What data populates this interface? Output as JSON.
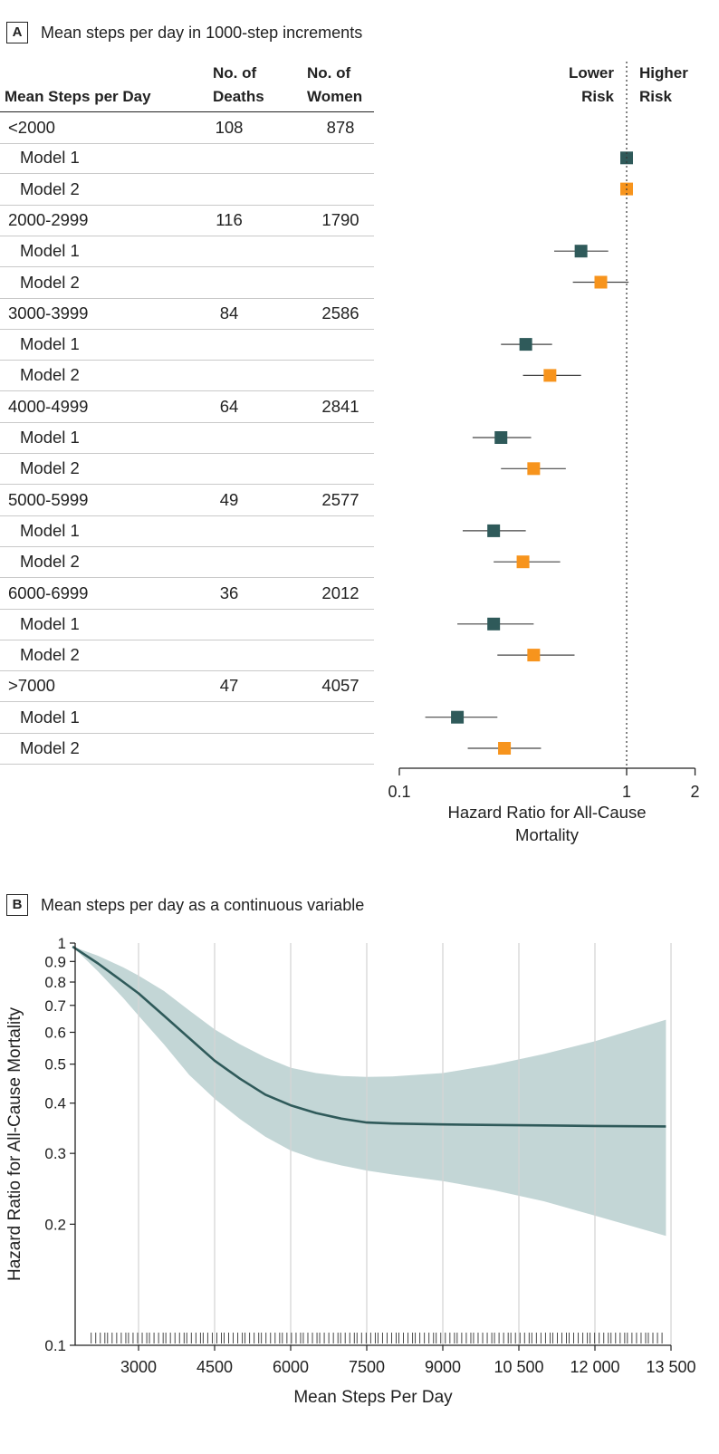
{
  "panelA": {
    "label": "A",
    "title": "Mean steps per day in 1000-step increments",
    "headers": {
      "steps": "Mean Steps per Day",
      "deaths": [
        "No. of",
        "Deaths"
      ],
      "women": [
        "No. of",
        "Women"
      ],
      "lower": [
        "Lower",
        "Risk"
      ],
      "higher": [
        "Higher",
        "Risk"
      ]
    }
  },
  "panelB": {
    "label": "B",
    "title": "Mean steps per day as a continuous variable"
  },
  "colors": {
    "model1": "#2f5a5a",
    "model2": "#f7941d",
    "band": "#c3d6d6",
    "curve": "#2f5a5a",
    "grid": "#d5d5d5"
  },
  "chart_data": [
    {
      "type": "forest",
      "xscale": "log",
      "xlim": [
        0.1,
        2
      ],
      "xticks": [
        0.1,
        1,
        2
      ],
      "xlabel": "Hazard Ratio for All-Cause Mortality",
      "reference_line": 1,
      "series": [
        {
          "name": "Model 1"
        },
        {
          "name": "Model 2"
        }
      ],
      "groups": [
        {
          "label": "<2000",
          "deaths": "108",
          "women": "878",
          "model1": {
            "label": "Model 1",
            "hr": 1.0,
            "lo": 1.0,
            "hi": 1.0
          },
          "model2": {
            "label": "Model 2",
            "hr": 1.0,
            "lo": 1.0,
            "hi": 1.0
          }
        },
        {
          "label": "2000-2999",
          "deaths": "116",
          "women": "1790",
          "model1": {
            "label": "Model 1",
            "hr": 0.63,
            "lo": 0.48,
            "hi": 0.83
          },
          "model2": {
            "label": "Model 2",
            "hr": 0.77,
            "lo": 0.58,
            "hi": 1.02
          }
        },
        {
          "label": "3000-3999",
          "deaths": "84",
          "women": "2586",
          "model1": {
            "label": "Model 1",
            "hr": 0.36,
            "lo": 0.28,
            "hi": 0.47
          },
          "model2": {
            "label": "Model 2",
            "hr": 0.46,
            "lo": 0.35,
            "hi": 0.63
          }
        },
        {
          "label": "4000-4999",
          "deaths": "64",
          "women": "2841",
          "model1": {
            "label": "Model 1",
            "hr": 0.28,
            "lo": 0.21,
            "hi": 0.38
          },
          "model2": {
            "label": "Model 2",
            "hr": 0.39,
            "lo": 0.28,
            "hi": 0.54
          }
        },
        {
          "label": "5000-5999",
          "deaths": "49",
          "women": "2577",
          "model1": {
            "label": "Model 1",
            "hr": 0.26,
            "lo": 0.19,
            "hi": 0.36
          },
          "model2": {
            "label": "Model 2",
            "hr": 0.35,
            "lo": 0.26,
            "hi": 0.51
          }
        },
        {
          "label": "6000-6999",
          "deaths": "36",
          "women": "2012",
          "model1": {
            "label": "Model 1",
            "hr": 0.26,
            "lo": 0.18,
            "hi": 0.39
          },
          "model2": {
            "label": "Model 2",
            "hr": 0.39,
            "lo": 0.27,
            "hi": 0.59
          }
        },
        {
          "label": ">7000",
          "deaths": "47",
          "women": "4057",
          "model1": {
            "label": "Model 1",
            "hr": 0.18,
            "lo": 0.13,
            "hi": 0.27
          },
          "model2": {
            "label": "Model 2",
            "hr": 0.29,
            "lo": 0.2,
            "hi": 0.42
          }
        }
      ]
    },
    {
      "type": "line",
      "xlabel": "Mean Steps Per Day",
      "ylabel": "Hazard Ratio for All-Cause Mortality",
      "yscale": "log",
      "xlim": [
        1300,
        13500
      ],
      "ylim": [
        0.1,
        1
      ],
      "xticks": [
        3000,
        4500,
        6000,
        7500,
        9000,
        10500,
        12000,
        13500
      ],
      "xtick_labels": [
        "3000",
        "4500",
        "6000",
        "7500",
        "9000",
        "10 500",
        "12 000",
        "13 500"
      ],
      "yticks": [
        0.1,
        0.2,
        0.3,
        0.4,
        0.5,
        0.6,
        0.7,
        0.8,
        0.9,
        1
      ],
      "ytick_labels": [
        "0.1",
        "0.2",
        "0.3",
        "0.4",
        "0.5",
        "0.6",
        "0.7",
        "0.8",
        "0.9",
        "1"
      ],
      "grid": "vertical",
      "curve": {
        "x": [
          1700,
          2200,
          2700,
          3000,
          3500,
          4000,
          4500,
          5000,
          5500,
          6000,
          6500,
          7000,
          7500,
          8000,
          9000,
          10000,
          11000,
          12000,
          13400
        ],
        "y": [
          0.98,
          0.89,
          0.8,
          0.75,
          0.66,
          0.58,
          0.51,
          0.46,
          0.42,
          0.395,
          0.378,
          0.366,
          0.358,
          0.356,
          0.354,
          0.353,
          0.352,
          0.351,
          0.35
        ]
      },
      "band": {
        "x": [
          1700,
          2200,
          2700,
          3000,
          3500,
          4000,
          4500,
          5000,
          5500,
          6000,
          6500,
          7000,
          7500,
          8000,
          9000,
          10000,
          11000,
          12000,
          13400
        ],
        "lower": [
          0.98,
          0.85,
          0.73,
          0.66,
          0.56,
          0.47,
          0.41,
          0.365,
          0.33,
          0.305,
          0.29,
          0.28,
          0.272,
          0.266,
          0.256,
          0.243,
          0.228,
          0.21,
          0.187
        ],
        "upper": [
          0.98,
          0.93,
          0.87,
          0.83,
          0.76,
          0.68,
          0.61,
          0.56,
          0.52,
          0.49,
          0.475,
          0.467,
          0.465,
          0.466,
          0.475,
          0.498,
          0.53,
          0.57,
          0.645
        ]
      },
      "rug": true
    }
  ]
}
